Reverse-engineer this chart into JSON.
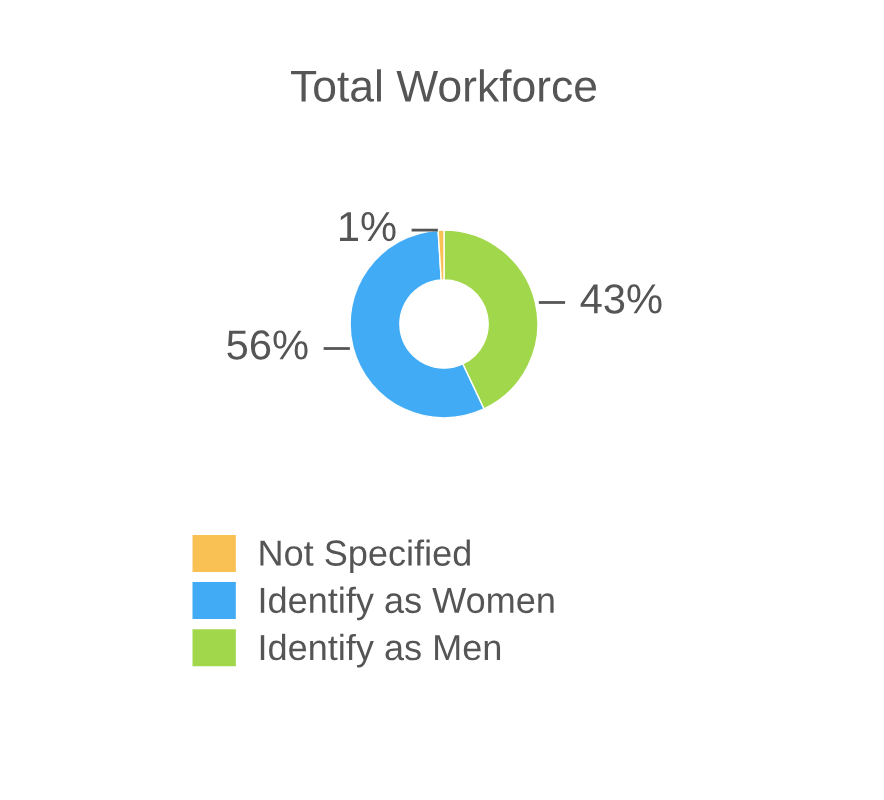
{
  "chart_data": {
    "type": "donut",
    "title": "Total Workforce",
    "categories": [
      "Not Specified",
      "Identify as Women",
      "Identify as Men"
    ],
    "values": [
      1,
      56,
      43
    ],
    "colors": [
      "#f9c154",
      "#41acf5",
      "#a1d84b"
    ],
    "value_labels": [
      "1%",
      "56%",
      "43%"
    ],
    "legend": "bottom"
  }
}
